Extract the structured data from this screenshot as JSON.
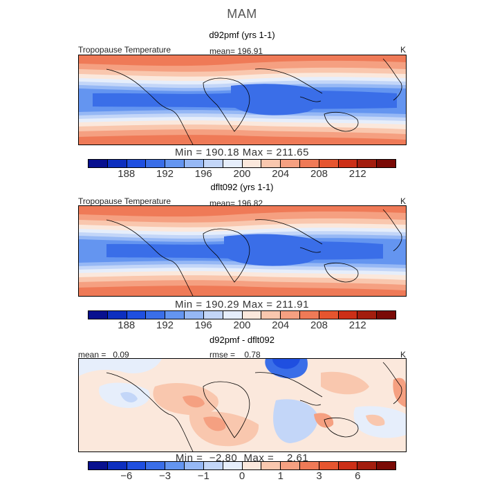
{
  "page": {
    "title": "MAM"
  },
  "panels": [
    {
      "title": "d92pmf (yrs 1-1)",
      "left_label": "Tropopause Temperature",
      "mid_label": "mean= 196.91",
      "right_label": "K",
      "minmax": "Min = 190.18  Max = 211.65",
      "cbar_ticks": [
        "188",
        "192",
        "196",
        "200",
        "204",
        "208",
        "212"
      ]
    },
    {
      "title": "dflt092 (yrs 1-1)",
      "left_label": "Tropopause Temperature",
      "mid_label": "mean= 196.82",
      "right_label": "K",
      "minmax": "Min = 190.29  Max = 211.91",
      "cbar_ticks": [
        "188",
        "192",
        "196",
        "200",
        "204",
        "208",
        "212"
      ]
    },
    {
      "title": "d92pmf - dflt092",
      "left_label": "mean =   0.09",
      "mid_label": "rmse =    0.78",
      "right_label": "K",
      "minmax": "Min =  −2.80  Max =    2.61",
      "cbar_ticks": [
        "−6",
        "−3",
        "−1",
        "0",
        "1",
        "3",
        "6"
      ]
    }
  ],
  "colors": {
    "scale": [
      "#08108f",
      "#0d2fbf",
      "#1f4fe0",
      "#3a6ee8",
      "#6495f0",
      "#96b8f5",
      "#c3d6f8",
      "#e6eefb",
      "#fbe8dc",
      "#f9c7ae",
      "#f5a081",
      "#ef7a57",
      "#e6552f",
      "#cc2f17",
      "#a31d0e",
      "#7a0a06"
    ],
    "coast": "#000000"
  }
}
